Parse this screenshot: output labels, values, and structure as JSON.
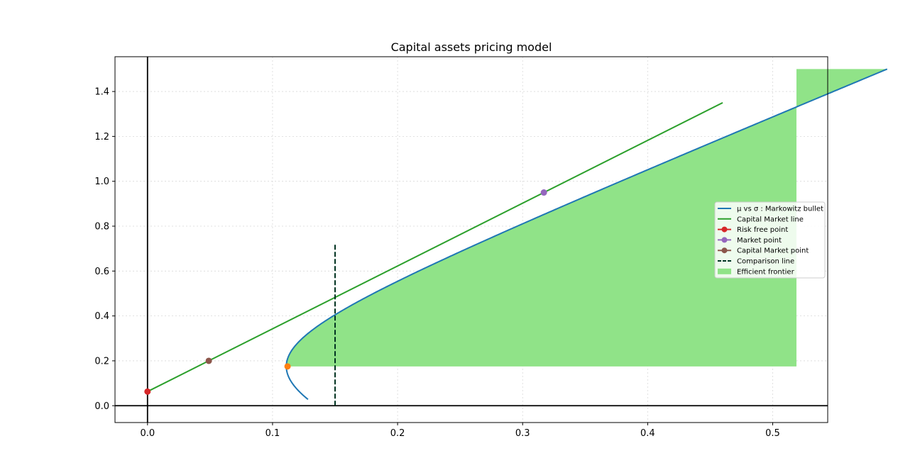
{
  "chart_data": {
    "type": "line",
    "title": "Capital assets pricing model",
    "xlabel": "",
    "ylabel": "",
    "xlim": [
      -0.026,
      0.544
    ],
    "ylim": [
      -0.075,
      1.555
    ],
    "x_ticks": [
      "0.0",
      "0.1",
      "0.2",
      "0.3",
      "0.4",
      "0.5"
    ],
    "x_tick_values": [
      0.0,
      0.1,
      0.2,
      0.3,
      0.4,
      0.5
    ],
    "y_ticks": [
      "0.0",
      "0.2",
      "0.4",
      "0.6",
      "0.8",
      "1.0",
      "1.2",
      "1.4"
    ],
    "y_tick_values": [
      0.0,
      0.2,
      0.4,
      0.6,
      0.8,
      1.0,
      1.2,
      1.4
    ],
    "grid": true,
    "legend_position": "center-right",
    "bullet": {
      "name": "μ vs σ : Markowitz bullet",
      "color": "#1f77b4",
      "mu_min": 0.175,
      "sigma_min": 0.111,
      "mu_range": [
        0.028,
        1.5
      ],
      "points": [
        [
          0.131,
          0.028
        ],
        [
          0.111,
          0.175
        ],
        [
          0.15,
          0.43
        ],
        [
          0.2,
          0.6
        ],
        [
          0.317,
          0.95
        ],
        [
          0.4,
          1.16
        ],
        [
          0.519,
          1.5
        ]
      ]
    },
    "capital_market_line": {
      "name": "Capital Market line",
      "color": "#2ca02c",
      "x": [
        0.0,
        0.46
      ],
      "y": [
        0.063,
        1.35
      ]
    },
    "risk_free_point": {
      "name": "Risk free point",
      "color": "#d62728",
      "x": 0.0,
      "y": 0.063
    },
    "market_point": {
      "name": "Market point",
      "color": "#9467bd",
      "x": 0.317,
      "y": 0.95
    },
    "capital_market_point": {
      "name": "Capital Market point",
      "color": "#8c564b",
      "x": 0.049,
      "y": 0.2
    },
    "min_variance_point": {
      "color": "#ff7f0e",
      "x": 0.112,
      "y": 0.175
    },
    "comparison_line": {
      "name": "Comparison line",
      "color": "#003322",
      "x": 0.15,
      "y": [
        0.0,
        0.725
      ]
    },
    "efficient_frontier": {
      "name": "Efficient frontier",
      "color": "#90e388",
      "x_right": 0.519,
      "y_base": 0.175
    },
    "axes_lines": {
      "x0": 0.0,
      "y0": 0.0
    }
  }
}
